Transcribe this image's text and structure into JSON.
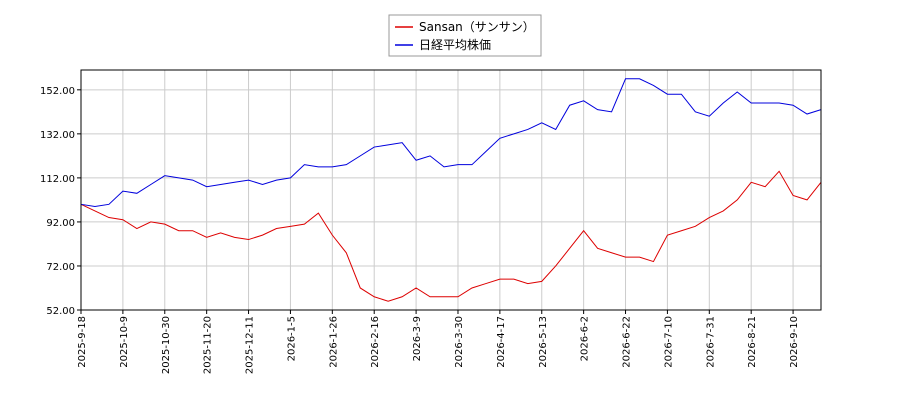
{
  "chart_data": {
    "type": "line",
    "categories": [
      "2025-9-18",
      null,
      null,
      "2025-10-9",
      null,
      null,
      "2025-10-30",
      null,
      null,
      "2025-11-20",
      null,
      null,
      "2025-12-11",
      null,
      null,
      "2026-1-5",
      null,
      null,
      "2026-1-26",
      null,
      null,
      "2026-2-16",
      null,
      null,
      "2026-3-9",
      null,
      null,
      "2026-3-30",
      null,
      null,
      "2026-4-17",
      null,
      null,
      "2026-5-13",
      null,
      null,
      "2026-6-2",
      null,
      null,
      "2026-6-22",
      null,
      null,
      "2026-7-10",
      null,
      null,
      "2026-7-31",
      null,
      null,
      "2026-8-21",
      null,
      null,
      "2026-9-10",
      null,
      null
    ],
    "series": [
      {
        "name": "Sansan（サンサン）",
        "color": "#dd0000",
        "values": [
          100,
          97,
          94,
          93,
          89,
          92,
          91,
          88,
          88,
          85,
          87,
          85,
          84,
          86,
          89,
          90,
          91,
          96,
          86,
          78,
          62,
          58,
          56,
          58,
          62,
          58,
          58,
          58,
          62,
          64,
          66,
          66,
          64,
          65,
          72,
          80,
          88,
          80,
          78,
          76,
          76,
          74,
          86,
          88,
          90,
          94,
          97,
          102,
          110,
          108,
          115,
          104,
          102,
          110
        ]
      },
      {
        "name": "日経平均株価",
        "color": "#0000dd",
        "values": [
          100,
          99,
          100,
          106,
          105,
          109,
          113,
          112,
          111,
          108,
          109,
          110,
          111,
          109,
          111,
          112,
          118,
          117,
          117,
          118,
          122,
          126,
          127,
          128,
          120,
          122,
          117,
          118,
          118,
          124,
          130,
          132,
          134,
          137,
          134,
          145,
          147,
          143,
          142,
          157,
          157,
          154,
          150,
          150,
          142,
          140,
          146,
          151,
          146,
          146,
          146,
          145,
          141,
          143
        ]
      }
    ],
    "ylim": [
      52,
      161
    ],
    "yticks": [
      {
        "value": 52,
        "label": "52.00"
      },
      {
        "value": 72,
        "label": "72.00"
      },
      {
        "value": 92,
        "label": "92.00"
      },
      {
        "value": 112,
        "label": "112.00"
      },
      {
        "value": 132,
        "label": "132.00"
      },
      {
        "value": 152,
        "label": "152.00"
      }
    ],
    "grid": true
  }
}
